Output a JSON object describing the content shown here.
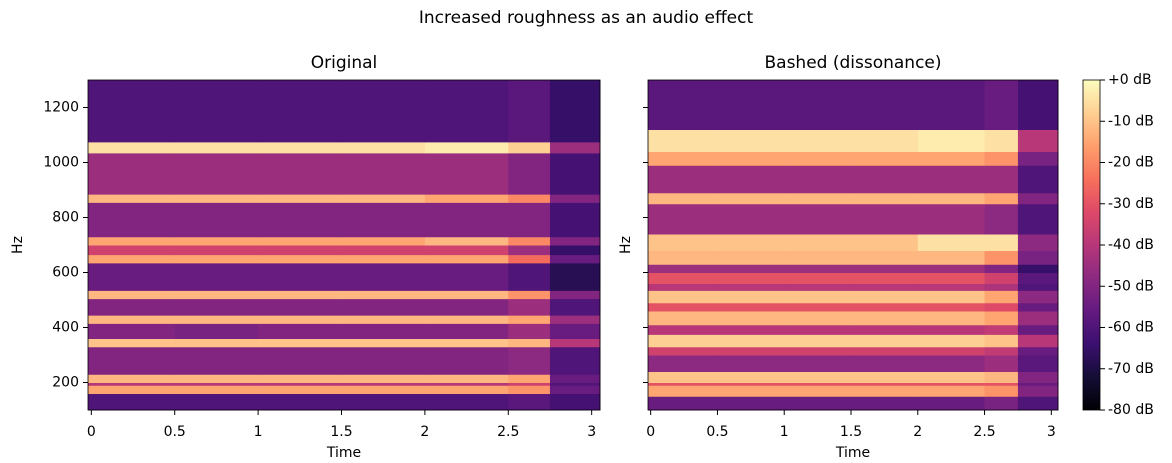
{
  "title": "Increased roughness as an audio effect",
  "chart_data": [
    {
      "type": "heatmap",
      "title": "Original",
      "xlabel": "Time",
      "ylabel": "Hz",
      "x": [
        -0.02,
        0.5,
        1,
        1.5,
        2,
        2.5,
        2.75,
        3.05
      ],
      "y": [
        100,
        160,
        190,
        200,
        230,
        330,
        360,
        415,
        445,
        505,
        535,
        635,
        665,
        700,
        730,
        855,
        885,
        1035,
        1075,
        1300
      ],
      "z": [
        [
          -60,
          -60,
          -60,
          -60,
          -60,
          -58,
          -62
        ],
        [
          -15,
          -15,
          -15,
          -15,
          -15,
          -18,
          -55
        ],
        [
          -40,
          -40,
          -40,
          -40,
          -40,
          -35,
          -60
        ],
        [
          -12,
          -12,
          -12,
          -12,
          -12,
          -15,
          -55
        ],
        [
          -50,
          -50,
          -50,
          -50,
          -50,
          -48,
          -60
        ],
        [
          -10,
          -10,
          -10,
          -10,
          -10,
          -12,
          -40
        ],
        [
          -50,
          -52,
          -50,
          -50,
          -50,
          -45,
          -55
        ],
        [
          -12,
          -12,
          -12,
          -12,
          -12,
          -15,
          -45
        ],
        [
          -50,
          -50,
          -50,
          -50,
          -50,
          -45,
          -60
        ],
        [
          -12,
          -12,
          -12,
          -12,
          -12,
          -18,
          -50
        ],
        [
          -55,
          -55,
          -55,
          -55,
          -55,
          -60,
          -68
        ],
        [
          -15,
          -15,
          -15,
          -15,
          -15,
          -25,
          -55
        ],
        [
          -35,
          -35,
          -35,
          -35,
          -35,
          -45,
          -65
        ],
        [
          -15,
          -15,
          -15,
          -15,
          -12,
          -20,
          -50
        ],
        [
          -50,
          -50,
          -50,
          -50,
          -50,
          -50,
          -62
        ],
        [
          -12,
          -12,
          -12,
          -12,
          -15,
          -20,
          -50
        ],
        [
          -45,
          -45,
          -45,
          -45,
          -45,
          -50,
          -62
        ],
        [
          -5,
          -5,
          -5,
          -5,
          -3,
          -8,
          -45
        ],
        [
          -60,
          -60,
          -60,
          -60,
          -60,
          -58,
          -65
        ]
      ],
      "xlim": [
        -0.02,
        3.05
      ],
      "ylim": [
        100,
        1300
      ],
      "xticks": [
        0,
        0.5,
        1,
        1.5,
        2,
        2.5,
        3
      ],
      "yticks": [
        200,
        400,
        600,
        800,
        1000,
        1200
      ],
      "show_yticklabels": true
    },
    {
      "type": "heatmap",
      "title": "Bashed (dissonance)",
      "xlabel": "Time",
      "ylabel": "Hz",
      "x": [
        -0.02,
        0.5,
        1,
        1.5,
        2,
        2.5,
        2.75,
        3.05
      ],
      "y": [
        100,
        150,
        190,
        200,
        240,
        300,
        330,
        375,
        410,
        460,
        490,
        535,
        560,
        600,
        630,
        680,
        740,
        850,
        890,
        990,
        1040,
        1120,
        1300
      ],
      "z": [
        [
          -55,
          -55,
          -55,
          -55,
          -55,
          -52,
          -60
        ],
        [
          -15,
          -15,
          -15,
          -15,
          -15,
          -18,
          -50
        ],
        [
          -30,
          -30,
          -30,
          -30,
          -30,
          -30,
          -55
        ],
        [
          -10,
          -10,
          -10,
          -10,
          -10,
          -12,
          -50
        ],
        [
          -48,
          -48,
          -48,
          -48,
          -48,
          -45,
          -58
        ],
        [
          -35,
          -35,
          -35,
          -35,
          -35,
          -38,
          -55
        ],
        [
          -8,
          -8,
          -8,
          -8,
          -8,
          -10,
          -40
        ],
        [
          -40,
          -40,
          -40,
          -40,
          -40,
          -38,
          -55
        ],
        [
          -12,
          -12,
          -12,
          -12,
          -12,
          -15,
          -45
        ],
        [
          -30,
          -30,
          -30,
          -30,
          -30,
          -32,
          -55
        ],
        [
          -10,
          -10,
          -10,
          -10,
          -10,
          -15,
          -48
        ],
        [
          -40,
          -40,
          -40,
          -40,
          -40,
          -42,
          -60
        ],
        [
          -30,
          -30,
          -30,
          -30,
          -30,
          -35,
          -58
        ],
        [
          -45,
          -45,
          -45,
          -45,
          -45,
          -50,
          -65
        ],
        [
          -12,
          -12,
          -12,
          -12,
          -12,
          -18,
          -52
        ],
        [
          -10,
          -10,
          -10,
          -10,
          -5,
          -5,
          -48
        ],
        [
          -45,
          -45,
          -45,
          -45,
          -45,
          -48,
          -60
        ],
        [
          -12,
          -12,
          -12,
          -12,
          -12,
          -15,
          -50
        ],
        [
          -45,
          -45,
          -45,
          -45,
          -45,
          -45,
          -60
        ],
        [
          -15,
          -15,
          -15,
          -15,
          -15,
          -18,
          -52
        ],
        [
          -5,
          -5,
          -5,
          -5,
          -3,
          -5,
          -40
        ],
        [
          -58,
          -58,
          -58,
          -58,
          -58,
          -55,
          -62
        ]
      ],
      "xlim": [
        -0.02,
        3.05
      ],
      "ylim": [
        100,
        1300
      ],
      "xticks": [
        0,
        0.5,
        1,
        1.5,
        2,
        2.5,
        3
      ],
      "yticks": [
        200,
        400,
        600,
        800,
        1000,
        1200
      ],
      "show_yticklabels": false
    }
  ],
  "colorbar": {
    "colormap": "magma",
    "lim": [
      -80,
      0
    ],
    "ticks": [
      {
        "value": 0,
        "label": "+0 dB"
      },
      {
        "value": -10,
        "label": "-10 dB"
      },
      {
        "value": -20,
        "label": "-20 dB"
      },
      {
        "value": -30,
        "label": "-30 dB"
      },
      {
        "value": -40,
        "label": "-40 dB"
      },
      {
        "value": -50,
        "label": "-50 dB"
      },
      {
        "value": -60,
        "label": "-60 dB"
      },
      {
        "value": -70,
        "label": "-70 dB"
      },
      {
        "value": -80,
        "label": "-80 dB"
      }
    ]
  }
}
